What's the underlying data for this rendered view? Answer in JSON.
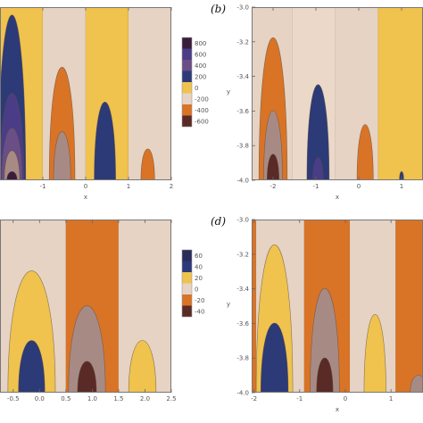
{
  "palette": {
    "beige": "#e6d3c3",
    "yellow": "#f0c24e",
    "orange": "#d97326",
    "mauve": "#a88a85",
    "navy": "#2d3a78",
    "purple": "#4a3c86",
    "plum": "#6a4e86",
    "darkred": "#5a2a26",
    "verydark": "#3a1d3a",
    "tan": "#ecd8c8",
    "midnight": "#2a2c5a"
  },
  "chart_data": [
    {
      "type": "heatmap",
      "panel": "a",
      "xlabel": "x",
      "ylabel": "",
      "xlim": [
        -2.0,
        2.0
      ],
      "ylim": [
        -4.0,
        -3.0
      ],
      "x_ticks": [
        "-1",
        "0",
        "1",
        "2"
      ],
      "legend": {
        "placement": "right",
        "levels": [
          "800",
          "600",
          "400",
          "200",
          "0",
          "-200",
          "-400",
          "-600"
        ],
        "colors": [
          "#3a1d3a",
          "#4a3c86",
          "#6a4e86",
          "#2d3a78",
          "#f0c24e",
          "#e6d3c3",
          "#d97326",
          "#5a2a26"
        ]
      },
      "bands": [
        {
          "x0": -2.0,
          "x1": -1.0,
          "color": "yellow"
        },
        {
          "x0": -1.0,
          "x1": 0.0,
          "color": "beige"
        },
        {
          "x0": 0.0,
          "x1": 1.0,
          "color": "yellow"
        },
        {
          "x0": 1.0,
          "x1": 2.0,
          "color": "beige"
        }
      ],
      "lobes": [
        {
          "cx": -1.72,
          "hw": 0.32,
          "top": -3.05,
          "color": "navy"
        },
        {
          "cx": -1.72,
          "hw": 0.28,
          "top": -3.5,
          "color": "purple"
        },
        {
          "cx": -1.72,
          "hw": 0.24,
          "top": -3.7,
          "color": "plum"
        },
        {
          "cx": -1.72,
          "hw": 0.18,
          "top": -3.83,
          "color": "mauve"
        },
        {
          "cx": -1.72,
          "hw": 0.12,
          "top": -3.95,
          "color": "verydark"
        },
        {
          "cx": -0.55,
          "hw": 0.3,
          "top": -3.35,
          "color": "orange"
        },
        {
          "cx": -0.55,
          "hw": 0.2,
          "top": -3.72,
          "color": "mauve"
        },
        {
          "cx": 0.45,
          "hw": 0.25,
          "top": -3.55,
          "color": "navy"
        },
        {
          "cx": 1.45,
          "hw": 0.16,
          "top": -3.82,
          "color": "orange"
        }
      ]
    },
    {
      "type": "heatmap",
      "panel": "b",
      "label": "(b)",
      "xlabel": "x",
      "ylabel": "y",
      "xlim": [
        -2.5,
        1.5
      ],
      "ylim": [
        -4.0,
        -3.0
      ],
      "x_ticks": [
        "-2",
        "-1",
        "0",
        "1"
      ],
      "y_ticks": [
        "-3.0",
        "-3.2",
        "-3.4",
        "-3.6",
        "-3.8",
        "-4.0"
      ],
      "bands": [
        {
          "x0": -2.5,
          "x1": -1.55,
          "color": "beige"
        },
        {
          "x0": -1.55,
          "x1": -0.55,
          "color": "tan"
        },
        {
          "x0": -0.55,
          "x1": 0.45,
          "color": "beige"
        },
        {
          "x0": 0.45,
          "x1": 1.5,
          "color": "yellow"
        }
      ],
      "lobes": [
        {
          "cx": -2.0,
          "hw": 0.33,
          "top": -3.18,
          "color": "orange"
        },
        {
          "cx": -2.0,
          "hw": 0.22,
          "top": -3.6,
          "color": "mauve"
        },
        {
          "cx": -2.0,
          "hw": 0.14,
          "top": -3.85,
          "color": "darkred"
        },
        {
          "cx": -0.95,
          "hw": 0.26,
          "top": -3.45,
          "color": "navy"
        },
        {
          "cx": -0.95,
          "hw": 0.12,
          "top": -3.87,
          "color": "purple"
        },
        {
          "cx": 0.15,
          "hw": 0.19,
          "top": -3.68,
          "color": "orange"
        },
        {
          "cx": 1.0,
          "hw": 0.05,
          "top": -3.95,
          "color": "navy"
        }
      ]
    },
    {
      "type": "heatmap",
      "panel": "c",
      "xlabel": "",
      "ylabel": "",
      "xlim": [
        -0.75,
        2.5
      ],
      "ylim": [
        -4.0,
        -3.0
      ],
      "x_ticks": [
        "-0.5",
        "0.0",
        "0.5",
        "1.0",
        "1.5",
        "2.0",
        "2.5"
      ],
      "legend": {
        "placement": "right",
        "levels": [
          "60",
          "40",
          "20",
          "0",
          "-20",
          "-40"
        ],
        "colors": [
          "#2a2c5a",
          "#2d3a78",
          "#f0c24e",
          "#e6d3c3",
          "#d97326",
          "#5a2a26"
        ]
      },
      "bands": [
        {
          "x0": -0.75,
          "x1": 0.5,
          "color": "beige"
        },
        {
          "x0": 0.5,
          "x1": 1.5,
          "color": "orange"
        },
        {
          "x0": 1.5,
          "x1": 2.5,
          "color": "beige"
        }
      ],
      "lobes": [
        {
          "cx": -0.15,
          "hw": 0.45,
          "top": -3.3,
          "color": "yellow"
        },
        {
          "cx": -0.15,
          "hw": 0.25,
          "top": -3.7,
          "color": "navy"
        },
        {
          "cx": 0.9,
          "hw": 0.35,
          "top": -3.5,
          "color": "mauve"
        },
        {
          "cx": 0.9,
          "hw": 0.18,
          "top": -3.82,
          "color": "darkred"
        },
        {
          "cx": 1.95,
          "hw": 0.26,
          "top": -3.7,
          "color": "yellow"
        }
      ]
    },
    {
      "type": "heatmap",
      "panel": "d",
      "label": "(d)",
      "xlabel": "x",
      "ylabel": "y",
      "xlim": [
        -2.05,
        1.7
      ],
      "ylim": [
        -4.0,
        -3.0
      ],
      "x_ticks": [
        "-2",
        "-1",
        "0",
        "1"
      ],
      "y_ticks": [
        "-3.0",
        "-3.2",
        "-3.4",
        "-3.6",
        "-3.8",
        "-4.0"
      ],
      "bands": [
        {
          "x0": -2.05,
          "x1": -1.95,
          "color": "orange"
        },
        {
          "x0": -1.95,
          "x1": -0.9,
          "color": "beige"
        },
        {
          "x0": -0.9,
          "x1": 0.1,
          "color": "orange"
        },
        {
          "x0": 0.1,
          "x1": 1.1,
          "color": "beige"
        },
        {
          "x0": 1.1,
          "x1": 1.7,
          "color": "orange"
        }
      ],
      "lobes": [
        {
          "cx": -1.55,
          "hw": 0.4,
          "top": -3.15,
          "color": "yellow"
        },
        {
          "cx": -1.55,
          "hw": 0.3,
          "top": -3.6,
          "color": "navy"
        },
        {
          "cx": -0.45,
          "hw": 0.32,
          "top": -3.4,
          "color": "mauve"
        },
        {
          "cx": -0.45,
          "hw": 0.18,
          "top": -3.8,
          "color": "darkred"
        },
        {
          "cx": 0.65,
          "hw": 0.24,
          "top": -3.55,
          "color": "yellow"
        },
        {
          "cx": 1.6,
          "hw": 0.18,
          "top": -3.9,
          "color": "mauve"
        }
      ]
    }
  ]
}
